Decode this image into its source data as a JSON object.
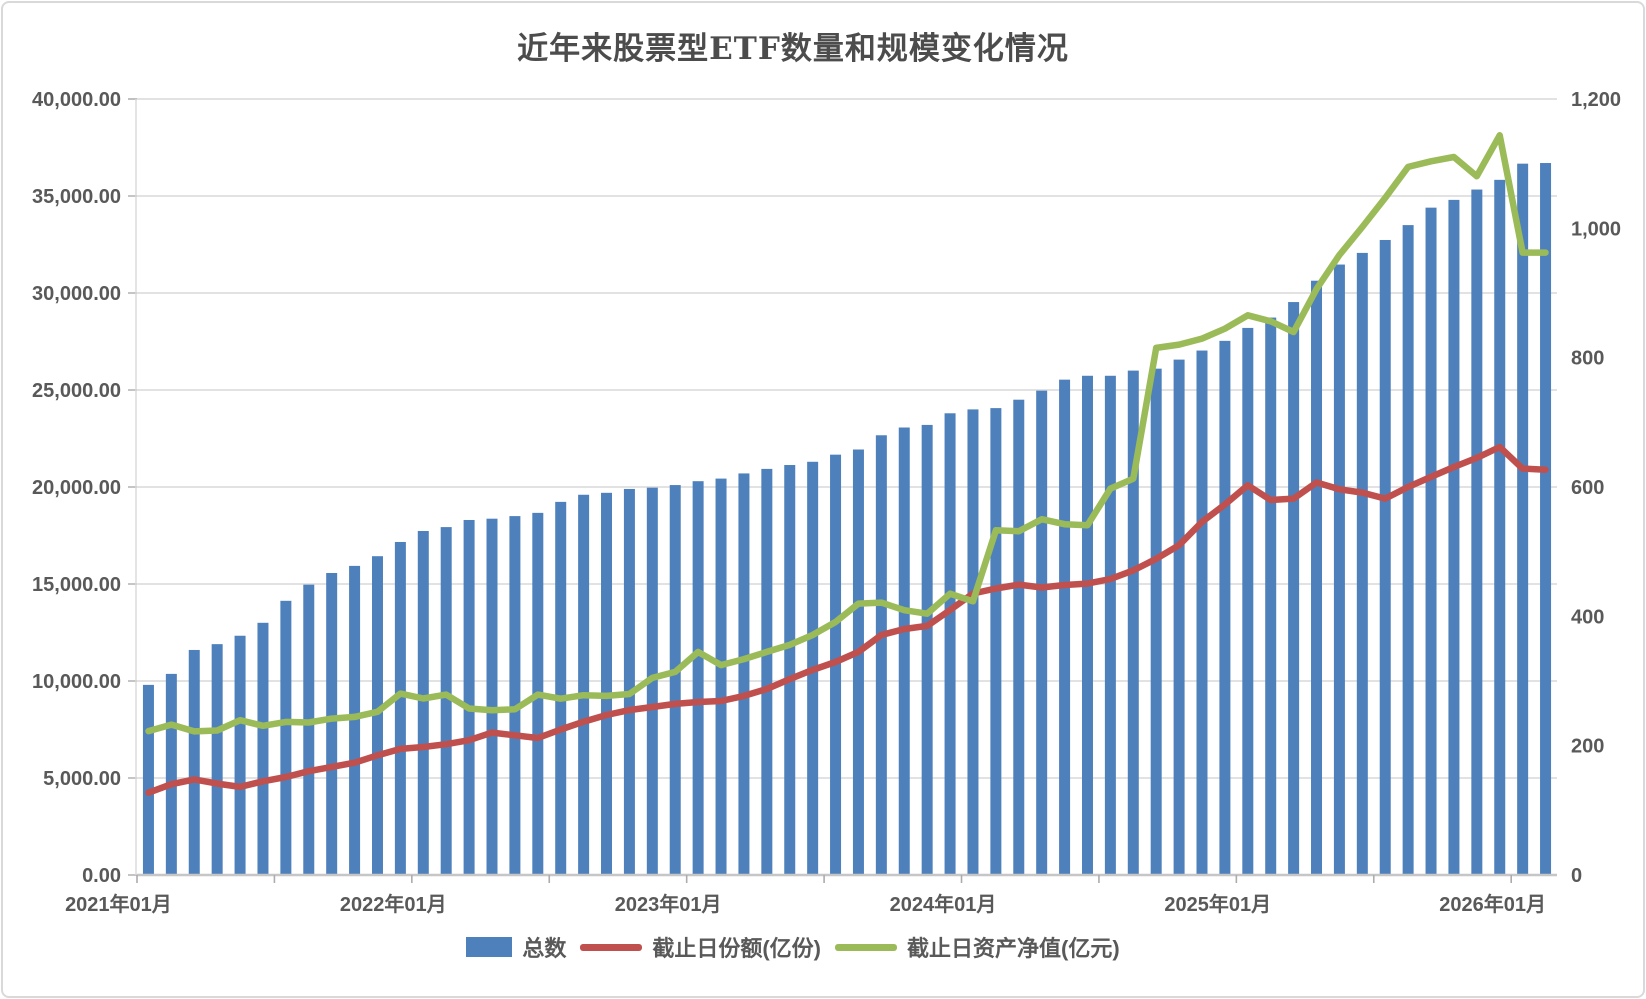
{
  "page": {
    "title": "近年来股票型ETF数量和规模变化情况"
  },
  "chart_data": {
    "type": "combo",
    "title": "近年来股票型ETF数量和规模变化情况",
    "grid": true,
    "legend_position": "bottom",
    "categories": [
      "2021-01",
      "2021-02",
      "2021-03",
      "2021-04",
      "2021-05",
      "2021-06",
      "2021-07",
      "2021-08",
      "2021-09",
      "2021-10",
      "2021-11",
      "2021-12",
      "2022-01",
      "2022-02",
      "2022-03",
      "2022-04",
      "2022-05",
      "2022-06",
      "2022-07",
      "2022-08",
      "2022-09",
      "2022-10",
      "2022-11",
      "2022-12",
      "2023-01",
      "2023-02",
      "2023-03",
      "2023-04",
      "2023-05",
      "2023-06",
      "2023-07",
      "2023-08",
      "2023-09",
      "2023-10",
      "2023-11",
      "2023-12",
      "2024-01",
      "2024-02",
      "2024-03",
      "2024-04",
      "2024-05",
      "2024-06",
      "2024-07",
      "2024-08",
      "2024-09",
      "2024-10",
      "2024-11",
      "2024-12",
      "2025-01",
      "2025-02",
      "2025-03",
      "2025-04",
      "2025-05",
      "2025-06",
      "2025-07",
      "2025-08",
      "2025-09",
      "2025-10",
      "2025-11",
      "2025-12",
      "2026-01",
      "2026-02"
    ],
    "x_axis": {
      "labels": [
        "2021年01月",
        "2022年01月",
        "2023年01月",
        "2024年01月",
        "2025年01月",
        "2026年01月"
      ],
      "label_indices": [
        0,
        12,
        24,
        36,
        48,
        60
      ],
      "tick_every": 6
    },
    "left_axis": {
      "min": 0,
      "max": 40000,
      "step": 5000,
      "tick_labels": [
        "0.00",
        "5,000.00",
        "10,000.00",
        "15,000.00",
        "20,000.00",
        "25,000.00",
        "30,000.00",
        "35,000.00",
        "40,000.00"
      ]
    },
    "right_axis": {
      "min": 0,
      "max": 1200,
      "step": 200,
      "tick_labels": [
        "0",
        "200",
        "400",
        "600",
        "800",
        "1,000",
        "1,200"
      ]
    },
    "series": [
      {
        "name": "总数",
        "type": "bar",
        "axis": "right",
        "color": "#4E81BC",
        "values": [
          294,
          311,
          348,
          357,
          370,
          390,
          424,
          449,
          467,
          478,
          493,
          515,
          532,
          538,
          549,
          551,
          555,
          560,
          577,
          588,
          591,
          597,
          599,
          603,
          609,
          613,
          621,
          628,
          634,
          639,
          650,
          658,
          680,
          692,
          696,
          714,
          720,
          722,
          735,
          749,
          766,
          772,
          772,
          780,
          783,
          797,
          811,
          826,
          846,
          862,
          886,
          919,
          944,
          962,
          982,
          1005,
          1032,
          1044,
          1060,
          1075,
          1100,
          1101
        ]
      },
      {
        "name": "截止日份额(亿份)",
        "type": "line",
        "axis": "left",
        "color": "#C0504D",
        "values": [
          4240,
          4680,
          4930,
          4710,
          4540,
          4830,
          5050,
          5350,
          5570,
          5790,
          6170,
          6500,
          6600,
          6740,
          6950,
          7340,
          7200,
          7060,
          7500,
          7900,
          8250,
          8500,
          8660,
          8820,
          8920,
          8970,
          9230,
          9590,
          10100,
          10570,
          10980,
          11500,
          12370,
          12680,
          12840,
          13660,
          14510,
          14770,
          14970,
          14820,
          14950,
          15020,
          15260,
          15700,
          16300,
          17000,
          18200,
          19100,
          20090,
          19330,
          19400,
          20230,
          19880,
          19710,
          19400,
          20000,
          20520,
          21030,
          21500,
          22060,
          20950,
          20890
        ]
      },
      {
        "name": "截止日资产净值(亿元)",
        "type": "line",
        "axis": "left",
        "color": "#9BBB59",
        "values": [
          7420,
          7750,
          7400,
          7450,
          7980,
          7690,
          7890,
          7860,
          8060,
          8150,
          8410,
          9350,
          9100,
          9300,
          8580,
          8490,
          8540,
          9300,
          9090,
          9270,
          9230,
          9330,
          10160,
          10470,
          11500,
          10820,
          11130,
          11500,
          11860,
          12370,
          13040,
          13990,
          14040,
          13650,
          13470,
          14500,
          14110,
          17770,
          17720,
          18340,
          18080,
          18030,
          19920,
          20430,
          27170,
          27340,
          27650,
          28160,
          28850,
          28540,
          27990,
          30200,
          31960,
          33400,
          34900,
          36500,
          36790,
          37010,
          36020,
          38130,
          32080,
          32080
        ]
      }
    ],
    "colors": {
      "grid": "#D9D9D9",
      "axis_line": "#C6C6C6",
      "tick": "#ACACAC",
      "text": "#595959"
    }
  }
}
